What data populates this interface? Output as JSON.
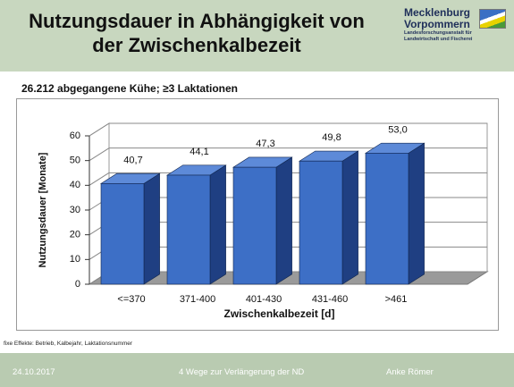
{
  "header": {
    "title": "Nutzungsdauer in Abhängigkeit von der Zwischenkalbezeit",
    "logo": [
      "Mecklenburg",
      "Vorpommern",
      "Landesforschungsanstalt für",
      "Landwirtschaft und Fischerei"
    ]
  },
  "subtitle": "26.212 abgegangene Kühe; ≥3 Laktationen",
  "chart_data": {
    "type": "bar3d",
    "categories": [
      "<=370",
      "371-400",
      "401-430",
      "431-460",
      ">461"
    ],
    "values": [
      40.7,
      44.1,
      47.3,
      49.8,
      53.0
    ],
    "value_labels": [
      "40,7",
      "44,1",
      "47,3",
      "49,8",
      "53,0"
    ],
    "color": "#3d6fc6",
    "ylim": [
      0,
      60
    ],
    "yticks": [
      0,
      10,
      20,
      30,
      40,
      50,
      60
    ],
    "grid": true,
    "y_label": "Nutzungsdauer [Monate]",
    "x_label": "Zwischenkalbezeit [d]"
  },
  "footnote": "fixe Effekte: Betrieb, Kalbejahr, Laktationsnummer",
  "footer": {
    "date": "24.10.2017",
    "topic": "4 Wege zur Verlängerung der ND",
    "author": "Anke Römer"
  }
}
